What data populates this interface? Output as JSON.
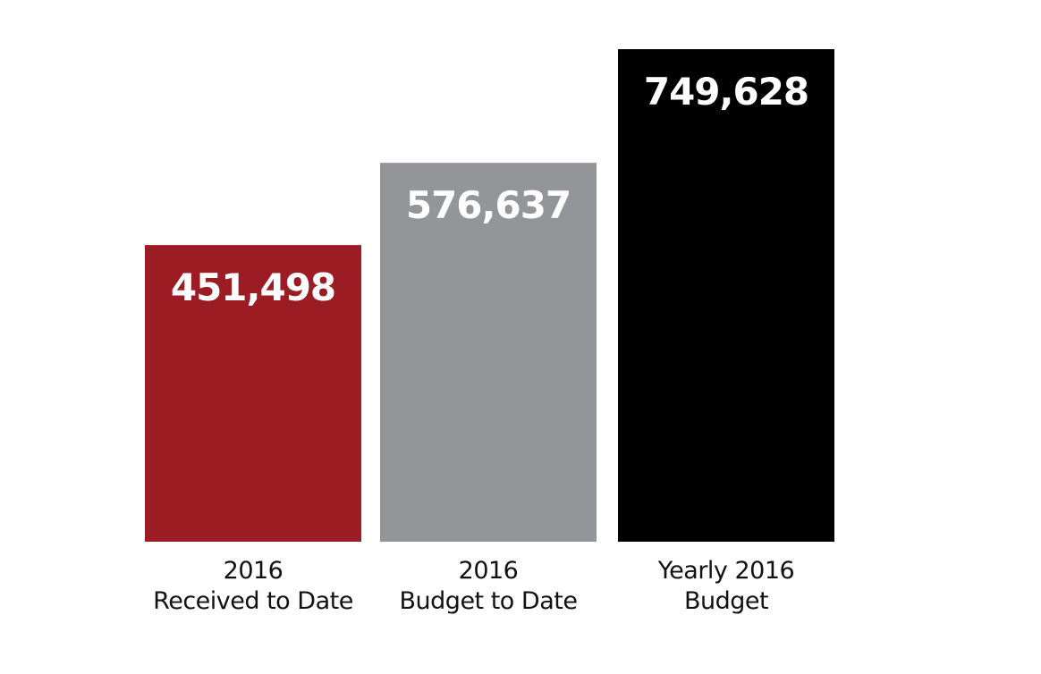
{
  "chart_data": {
    "type": "bar",
    "categories": [
      [
        "2016",
        "Received to Date"
      ],
      [
        "2016",
        "Budget to Date"
      ],
      [
        "Yearly 2016",
        "Budget"
      ]
    ],
    "values": [
      451498,
      576637,
      749628
    ],
    "value_labels": [
      "451,498",
      "576,637",
      "749,628"
    ],
    "colors": [
      "#9b1c23",
      "#939598",
      "#000000"
    ],
    "value_label_color": "#ffffff",
    "ylim": [
      0,
      749628
    ],
    "grid": false,
    "axes_visible": false
  }
}
